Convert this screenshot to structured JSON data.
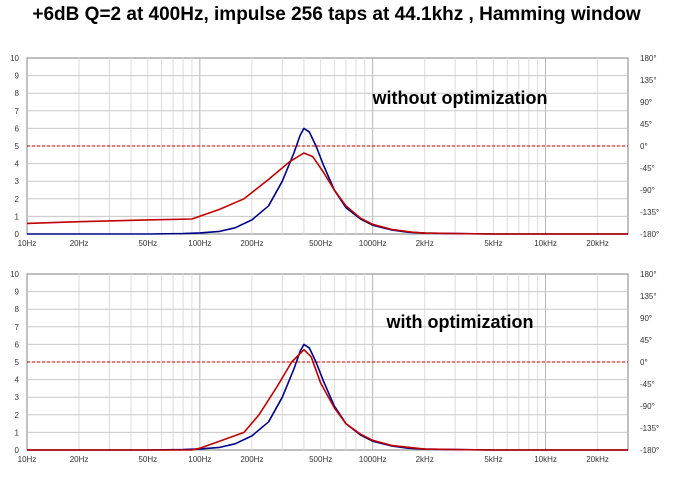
{
  "title": "+6dB Q=2 at 400Hz, impulse  256 taps at 44.1khz , Hamming window",
  "chart_data": [
    {
      "type": "line",
      "annotation": "without optimization",
      "x_scale": "log",
      "xlim": [
        10,
        30000
      ],
      "ylim": [
        0,
        10
      ],
      "y2lim": [
        -180,
        180
      ],
      "grid": true,
      "x_ticks": [
        10,
        20,
        50,
        100,
        200,
        500,
        1000,
        2000,
        5000,
        10000,
        20000
      ],
      "x_tick_labels": [
        "10Hz",
        "20Hz",
        "50Hz",
        "100Hz",
        "200Hz",
        "500Hz",
        "1000Hz",
        "2kHz",
        "5kHz",
        "10kHz",
        "20kHz"
      ],
      "y_ticks": [
        0,
        1,
        2,
        3,
        4,
        5,
        6,
        7,
        8,
        9,
        10
      ],
      "y_tick_labels": [
        "0",
        "1",
        "2",
        "3",
        "4",
        "5",
        "6",
        "7",
        "8",
        "9",
        "10"
      ],
      "y2_ticks": [
        -180,
        -135,
        -90,
        -45,
        0,
        45,
        90,
        135,
        180
      ],
      "y2_tick_labels": [
        "-180°",
        "-135°",
        "-90°",
        "-45°",
        "0°",
        "45°",
        "90°",
        "135°",
        "180°"
      ],
      "series": [
        {
          "color": "#00008b",
          "x": [
            10,
            50,
            80,
            100,
            130,
            160,
            200,
            250,
            300,
            350,
            380,
            400,
            430,
            470,
            520,
            600,
            700,
            850,
            1000,
            1300,
            1600,
            2000,
            3000,
            5000,
            10000,
            30000
          ],
          "y": [
            0,
            0,
            0.02,
            0.06,
            0.15,
            0.35,
            0.8,
            1.6,
            3.0,
            4.6,
            5.6,
            6.0,
            5.8,
            5.0,
            3.9,
            2.5,
            1.5,
            0.85,
            0.5,
            0.22,
            0.1,
            0.05,
            0.02,
            0,
            0,
            0
          ]
        },
        {
          "color": "#c00000",
          "x": [
            10,
            20,
            50,
            90,
            130,
            180,
            250,
            330,
            400,
            450,
            520,
            600,
            700,
            850,
            1000,
            1300,
            1700,
            2000,
            3000,
            5000,
            10000,
            30000
          ],
          "y": [
            0.6,
            0.7,
            0.8,
            0.85,
            1.4,
            2.0,
            3.1,
            4.1,
            4.6,
            4.4,
            3.5,
            2.5,
            1.6,
            0.9,
            0.55,
            0.25,
            0.1,
            0.05,
            0.02,
            0,
            0,
            0
          ]
        },
        {
          "color": "#c00000",
          "dashed": true,
          "x": [
            10,
            30000
          ],
          "y": [
            5,
            5
          ]
        }
      ]
    },
    {
      "type": "line",
      "annotation": "with optimization",
      "x_scale": "log",
      "xlim": [
        10,
        30000
      ],
      "ylim": [
        0,
        10
      ],
      "y2lim": [
        -180,
        180
      ],
      "grid": true,
      "x_ticks": [
        10,
        20,
        50,
        100,
        200,
        500,
        1000,
        2000,
        5000,
        10000,
        20000
      ],
      "x_tick_labels": [
        "10Hz",
        "20Hz",
        "50Hz",
        "100Hz",
        "200Hz",
        "500Hz",
        "1000Hz",
        "2kHz",
        "5kHz",
        "10kHz",
        "20kHz"
      ],
      "y_ticks": [
        0,
        1,
        2,
        3,
        4,
        5,
        6,
        7,
        8,
        9,
        10
      ],
      "y_tick_labels": [
        "0",
        "1",
        "2",
        "3",
        "4",
        "5",
        "6",
        "7",
        "8",
        "9",
        "10"
      ],
      "y2_ticks": [
        -180,
        -135,
        -90,
        -45,
        0,
        45,
        90,
        135,
        180
      ],
      "y2_tick_labels": [
        "-180°",
        "-135°",
        "-90°",
        "-45°",
        "0°",
        "45°",
        "90°",
        "135°",
        "180°"
      ],
      "series": [
        {
          "color": "#00008b",
          "x": [
            10,
            50,
            80,
            100,
            130,
            160,
            200,
            250,
            300,
            350,
            380,
            400,
            430,
            470,
            520,
            600,
            700,
            850,
            1000,
            1300,
            1600,
            2000,
            3000,
            5000,
            10000,
            30000
          ],
          "y": [
            0,
            0,
            0.02,
            0.06,
            0.15,
            0.35,
            0.8,
            1.6,
            3.0,
            4.6,
            5.6,
            6.0,
            5.8,
            5.0,
            3.9,
            2.5,
            1.5,
            0.85,
            0.5,
            0.22,
            0.1,
            0.05,
            0.02,
            0,
            0,
            0
          ]
        },
        {
          "color": "#c00000",
          "x": [
            10,
            50,
            90,
            100,
            130,
            180,
            220,
            280,
            340,
            400,
            440,
            500,
            600,
            700,
            850,
            1000,
            1300,
            2000,
            3000,
            5000,
            10000,
            30000
          ],
          "y": [
            0,
            0,
            0,
            0.1,
            0.5,
            1.0,
            2.0,
            3.6,
            5.0,
            5.7,
            5.3,
            3.8,
            2.4,
            1.5,
            0.9,
            0.55,
            0.25,
            0.05,
            0.02,
            0,
            0,
            0
          ]
        },
        {
          "color": "#c00000",
          "dashed": true,
          "x": [
            10,
            30000
          ],
          "y": [
            5,
            5
          ]
        }
      ]
    }
  ]
}
